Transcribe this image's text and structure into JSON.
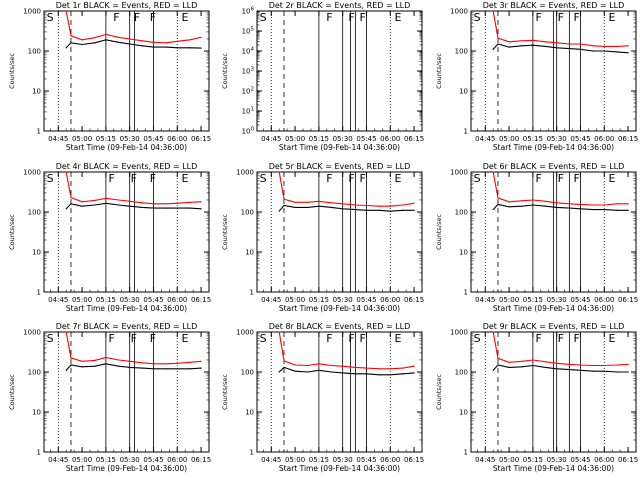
{
  "colors": {
    "events": "#000000",
    "lld": "#ff0000",
    "axis": "#000000",
    "background": "#ffffff"
  },
  "shared": {
    "xlabel": "Start Time (09-Feb-14 04:36:00)",
    "ylabel": "Counts/sec",
    "x_tick_labels": [
      "04:45",
      "05:00",
      "05:15",
      "05:30",
      "05:45",
      "06:00",
      "06:15"
    ],
    "xlim": [
      "04:36",
      "06:20"
    ],
    "y_scale": "log",
    "ylim": [
      1,
      1000
    ],
    "y_tick_labels": [
      "1",
      "10",
      "100",
      "1000"
    ]
  },
  "chart_data": [
    {
      "type": "line",
      "title": "Det 1r BLACK = Events, RED = LLD",
      "x": [
        "04:50",
        "04:53",
        "05:00",
        "05:08",
        "05:15",
        "05:23",
        "05:30",
        "05:38",
        "05:45",
        "05:53",
        "06:00",
        "06:08",
        "06:15"
      ],
      "series": [
        {
          "name": "Events",
          "color": "black",
          "values": [
            120,
            160,
            145,
            160,
            190,
            165,
            150,
            135,
            125,
            125,
            120,
            120,
            118
          ]
        },
        {
          "name": "LLD",
          "color": "red",
          "values": [
            1000,
            240,
            190,
            215,
            260,
            220,
            200,
            180,
            165,
            160,
            175,
            190,
            220
          ]
        }
      ],
      "flags": [
        {
          "label": "S",
          "time": "04:37"
        },
        {
          "label": "F",
          "time": "05:19"
        },
        {
          "label": "F",
          "time": "05:32"
        },
        {
          "label": "F",
          "time": "05:42"
        },
        {
          "label": "E",
          "time": "06:02"
        }
      ],
      "dashed_line": "04:53",
      "dotted_lines": [
        "04:45",
        "06:00"
      ],
      "solid_lines": [
        "05:15",
        "05:30",
        "05:33",
        "05:45"
      ]
    },
    {
      "type": "line",
      "title": "Det 2r BLACK = Events, RED = LLD",
      "ylim": [
        1,
        1000000
      ],
      "y_tick_labels": [
        "10^0",
        "10^1",
        "10^2",
        "10^3",
        "10^4",
        "10^5",
        "10^6"
      ],
      "series": [],
      "flags": [
        {
          "label": "S",
          "time": "04:37"
        },
        {
          "label": "F",
          "time": "05:19"
        },
        {
          "label": "F",
          "time": "05:33"
        },
        {
          "label": "F",
          "time": "05:40"
        },
        {
          "label": "E",
          "time": "06:02"
        }
      ],
      "dashed_line": "04:53",
      "dotted_lines": [
        "04:45",
        "06:00"
      ],
      "solid_lines": [
        "05:15",
        "05:30",
        "05:35",
        "05:38",
        "05:45"
      ]
    },
    {
      "type": "line",
      "title": "Det 3r BLACK = Events, RED = LLD",
      "x": [
        "04:50",
        "04:53",
        "05:00",
        "05:08",
        "05:15",
        "05:23",
        "05:30",
        "05:38",
        "05:45",
        "05:53",
        "06:00",
        "06:08",
        "06:15"
      ],
      "series": [
        {
          "name": "Events",
          "color": "black",
          "values": [
            110,
            150,
            125,
            135,
            140,
            130,
            120,
            115,
            110,
            100,
            100,
            95,
            90
          ]
        },
        {
          "name": "LLD",
          "color": "red",
          "values": [
            1000,
            210,
            170,
            180,
            185,
            170,
            160,
            150,
            150,
            135,
            130,
            130,
            135
          ]
        }
      ],
      "flags": [
        {
          "label": "S",
          "time": "04:37"
        },
        {
          "label": "F",
          "time": "05:16"
        },
        {
          "label": "F",
          "time": "05:30"
        },
        {
          "label": "F",
          "time": "05:40"
        },
        {
          "label": "E",
          "time": "06:02"
        }
      ],
      "dashed_line": "04:53",
      "dotted_lines": [
        "04:45",
        "06:00"
      ],
      "solid_lines": [
        "05:15",
        "05:28",
        "05:30",
        "05:38",
        "05:45"
      ]
    },
    {
      "type": "line",
      "title": "Det 4r BLACK = Events, RED = LLD",
      "x": [
        "04:50",
        "04:53",
        "05:00",
        "05:08",
        "05:15",
        "05:23",
        "05:30",
        "05:38",
        "05:45",
        "05:53",
        "06:00",
        "06:08",
        "06:15"
      ],
      "series": [
        {
          "name": "Events",
          "color": "black",
          "values": [
            120,
            160,
            140,
            150,
            165,
            150,
            140,
            130,
            125,
            125,
            125,
            125,
            120
          ]
        },
        {
          "name": "LLD",
          "color": "red",
          "values": [
            1000,
            230,
            180,
            195,
            220,
            200,
            185,
            170,
            160,
            160,
            165,
            175,
            180
          ]
        }
      ],
      "flags": [
        {
          "label": "S",
          "time": "04:37"
        },
        {
          "label": "F",
          "time": "05:16"
        },
        {
          "label": "F",
          "time": "05:30"
        },
        {
          "label": "F",
          "time": "05:42"
        },
        {
          "label": "E",
          "time": "06:02"
        }
      ],
      "dashed_line": "04:53",
      "dotted_lines": [
        "04:45",
        "06:00"
      ],
      "solid_lines": [
        "05:15",
        "05:30",
        "05:33",
        "05:45"
      ]
    },
    {
      "type": "line",
      "title": "Det 5r BLACK = Events, RED = LLD",
      "x": [
        "04:50",
        "04:53",
        "05:00",
        "05:08",
        "05:15",
        "05:23",
        "05:30",
        "05:38",
        "05:45",
        "05:53",
        "06:00",
        "06:08",
        "06:15"
      ],
      "series": [
        {
          "name": "Events",
          "color": "black",
          "values": [
            105,
            145,
            130,
            130,
            140,
            130,
            120,
            115,
            110,
            110,
            105,
            110,
            110
          ]
        },
        {
          "name": "LLD",
          "color": "red",
          "values": [
            1000,
            210,
            175,
            175,
            185,
            170,
            160,
            150,
            145,
            140,
            140,
            150,
            165
          ]
        }
      ],
      "flags": [
        {
          "label": "S",
          "time": "04:37"
        },
        {
          "label": "F",
          "time": "05:19"
        },
        {
          "label": "F",
          "time": "05:33"
        },
        {
          "label": "F",
          "time": "05:40"
        },
        {
          "label": "E",
          "time": "06:02"
        }
      ],
      "dashed_line": "04:53",
      "dotted_lines": [
        "04:45",
        "06:00"
      ],
      "solid_lines": [
        "05:15",
        "05:30",
        "05:35",
        "05:38",
        "05:45"
      ]
    },
    {
      "type": "line",
      "title": "Det 6r BLACK = Events, RED = LLD",
      "x": [
        "04:50",
        "04:53",
        "05:00",
        "05:08",
        "05:15",
        "05:23",
        "05:30",
        "05:38",
        "05:45",
        "05:53",
        "06:00",
        "06:08",
        "06:15"
      ],
      "series": [
        {
          "name": "Events",
          "color": "black",
          "values": [
            115,
            155,
            135,
            140,
            150,
            140,
            130,
            125,
            120,
            115,
            115,
            110,
            110
          ]
        },
        {
          "name": "LLD",
          "color": "red",
          "values": [
            1000,
            225,
            180,
            190,
            200,
            185,
            170,
            160,
            155,
            150,
            150,
            160,
            160
          ]
        }
      ],
      "flags": [
        {
          "label": "S",
          "time": "04:37"
        },
        {
          "label": "F",
          "time": "05:16"
        },
        {
          "label": "F",
          "time": "05:30"
        },
        {
          "label": "F",
          "time": "05:40"
        },
        {
          "label": "E",
          "time": "06:02"
        }
      ],
      "dashed_line": "04:53",
      "dotted_lines": [
        "04:45",
        "06:00"
      ],
      "solid_lines": [
        "05:15",
        "05:28",
        "05:30",
        "05:38",
        "05:45"
      ]
    },
    {
      "type": "line",
      "title": "Det 7r BLACK = Events, RED = LLD",
      "x": [
        "04:50",
        "04:53",
        "05:00",
        "05:08",
        "05:15",
        "05:23",
        "05:30",
        "05:38",
        "05:45",
        "05:53",
        "06:00",
        "06:08",
        "06:15"
      ],
      "series": [
        {
          "name": "Events",
          "color": "black",
          "values": [
            110,
            150,
            135,
            140,
            160,
            140,
            130,
            125,
            120,
            120,
            120,
            120,
            125
          ]
        },
        {
          "name": "LLD",
          "color": "red",
          "values": [
            1000,
            225,
            185,
            195,
            230,
            200,
            185,
            170,
            160,
            160,
            165,
            175,
            185
          ]
        }
      ],
      "flags": [
        {
          "label": "S",
          "time": "04:37"
        },
        {
          "label": "F",
          "time": "05:16"
        },
        {
          "label": "F",
          "time": "05:30"
        },
        {
          "label": "F",
          "time": "05:42"
        },
        {
          "label": "E",
          "time": "06:02"
        }
      ],
      "dashed_line": "04:53",
      "dotted_lines": [
        "04:45",
        "06:00"
      ],
      "solid_lines": [
        "05:15",
        "05:30",
        "05:33",
        "05:45"
      ]
    },
    {
      "type": "line",
      "title": "Det 8r BLACK = Events, RED = LLD",
      "x": [
        "04:50",
        "04:53",
        "05:00",
        "05:08",
        "05:15",
        "05:23",
        "05:30",
        "05:38",
        "05:45",
        "05:53",
        "06:00",
        "06:08",
        "06:15"
      ],
      "series": [
        {
          "name": "Events",
          "color": "black",
          "values": [
            100,
            130,
            105,
            100,
            110,
            100,
            95,
            90,
            90,
            85,
            85,
            90,
            95
          ]
        },
        {
          "name": "LLD",
          "color": "red",
          "values": [
            1000,
            190,
            150,
            145,
            160,
            145,
            140,
            130,
            125,
            120,
            120,
            125,
            140
          ]
        }
      ],
      "flags": [
        {
          "label": "S",
          "time": "04:37"
        },
        {
          "label": "F",
          "time": "05:19"
        },
        {
          "label": "F",
          "time": "05:33"
        },
        {
          "label": "F",
          "time": "05:40"
        },
        {
          "label": "E",
          "time": "06:02"
        }
      ],
      "dashed_line": "04:53",
      "dotted_lines": [
        "04:45",
        "06:00"
      ],
      "solid_lines": [
        "05:15",
        "05:30",
        "05:35",
        "05:38",
        "05:45"
      ]
    },
    {
      "type": "line",
      "title": "Det 9r BLACK = Events, RED = LLD",
      "x": [
        "04:50",
        "04:53",
        "05:00",
        "05:08",
        "05:15",
        "05:23",
        "05:30",
        "05:38",
        "05:45",
        "05:53",
        "06:00",
        "06:08",
        "06:15"
      ],
      "series": [
        {
          "name": "Events",
          "color": "black",
          "values": [
            110,
            150,
            130,
            135,
            145,
            130,
            120,
            115,
            110,
            105,
            105,
            100,
            100
          ]
        },
        {
          "name": "LLD",
          "color": "red",
          "values": [
            1000,
            220,
            175,
            185,
            200,
            180,
            165,
            155,
            150,
            145,
            145,
            150,
            155
          ]
        }
      ],
      "flags": [
        {
          "label": "S",
          "time": "04:37"
        },
        {
          "label": "F",
          "time": "05:16"
        },
        {
          "label": "F",
          "time": "05:30"
        },
        {
          "label": "F",
          "time": "05:40"
        },
        {
          "label": "E",
          "time": "06:02"
        }
      ],
      "dashed_line": "04:53",
      "dotted_lines": [
        "04:45",
        "06:00"
      ],
      "solid_lines": [
        "05:15",
        "05:28",
        "05:30",
        "05:38",
        "05:45"
      ]
    }
  ]
}
